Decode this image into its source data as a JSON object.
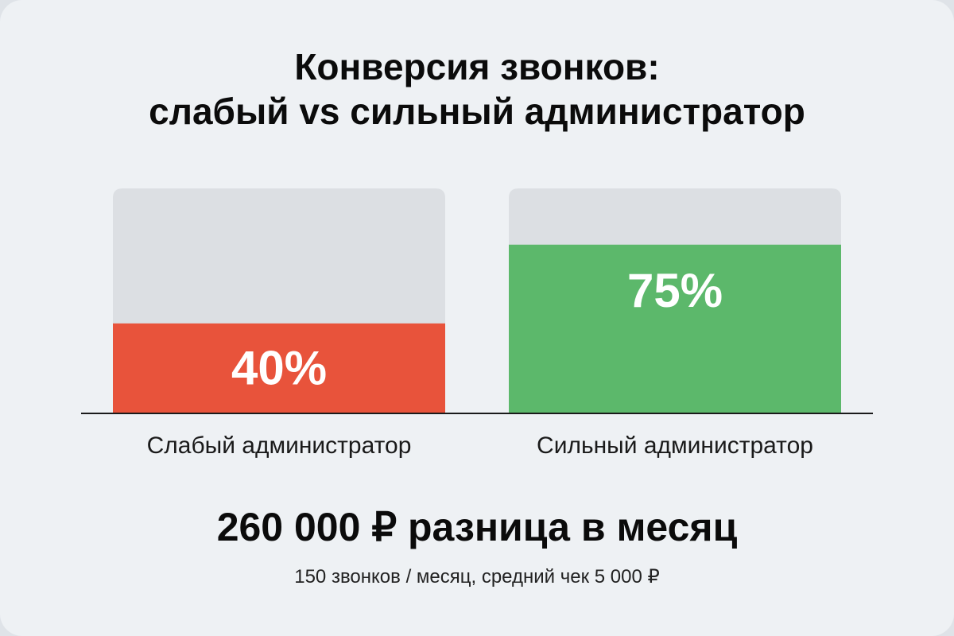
{
  "chart_data": {
    "type": "bar",
    "title": "Конверсия звонков: слабый vs сильный администратор",
    "title_lines": [
      "Конверсия звонков:",
      "слабый vs сильный администратор"
    ],
    "categories": [
      "Слабый администратор",
      "Сильный администратор"
    ],
    "values": [
      40,
      75
    ],
    "value_labels": [
      "40%",
      "75%"
    ],
    "ylim": [
      0,
      100
    ],
    "unit": "%",
    "colors": [
      "#e8533b",
      "#5cb86b"
    ],
    "track_color": "#dcdfe3",
    "label_color": "#ffffff",
    "axis_color": "#1a1a1a",
    "grid": false
  },
  "summary": {
    "headline": "260 000 ₽ разница в месяц",
    "note": "150 звонков / месяц, средний чек 5 000 ₽"
  }
}
